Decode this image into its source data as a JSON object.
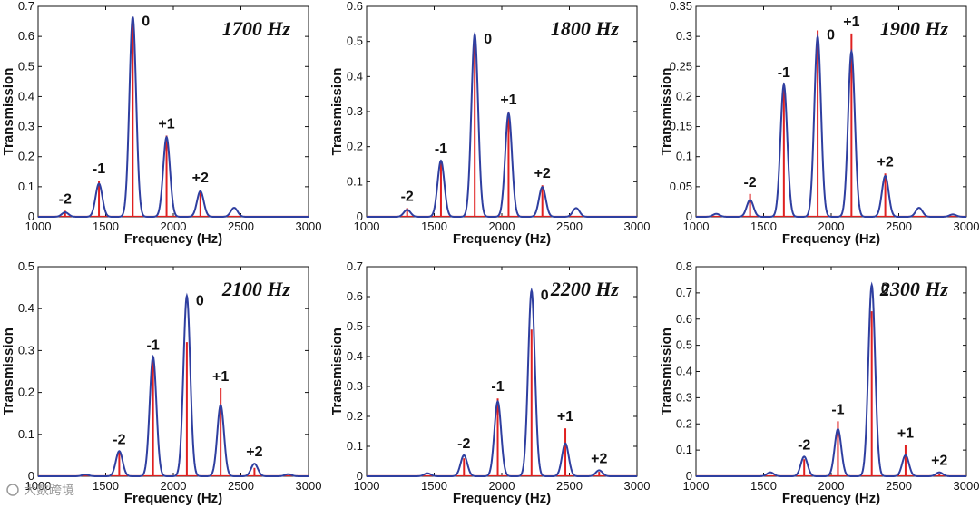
{
  "figure": {
    "watermark": "大数跨境",
    "colors": {
      "model_curve": "#2f3fa0",
      "peak_stem": "#e02020",
      "axis": "#111111"
    }
  },
  "chart_data": [
    {
      "type": "line",
      "title": "1700 Hz",
      "xlabel": "Frequency (Hz)",
      "ylabel": "Transmission",
      "xlim": [
        1000,
        3000
      ],
      "ylim": [
        0,
        0.7
      ],
      "xticks": [
        "1000",
        "1500",
        "2000",
        "2500",
        "3000"
      ],
      "yticks": [
        "0",
        "0.1",
        "0.2",
        "0.3",
        "0.4",
        "0.5",
        "0.6",
        "0.7"
      ],
      "peaks": [
        {
          "label": "-2",
          "x": 1200,
          "curve": 0.015,
          "stem": 0.02
        },
        {
          "label": "-1",
          "x": 1450,
          "curve": 0.11,
          "stem": 0.12
        },
        {
          "label": "0",
          "x": 1700,
          "curve": 0.665,
          "stem": 0.665
        },
        {
          "label": "+1",
          "x": 1950,
          "curve": 0.265,
          "stem": 0.27
        },
        {
          "label": "+2",
          "x": 2200,
          "curve": 0.085,
          "stem": 0.09
        },
        {
          "label": "",
          "x": 2450,
          "curve": 0.03,
          "stem": 0
        }
      ]
    },
    {
      "type": "line",
      "title": "1800 Hz",
      "xlabel": "Frequency (Hz)",
      "ylabel": "Transmission",
      "xlim": [
        1000,
        3000
      ],
      "ylim": [
        0,
        0.6
      ],
      "xticks": [
        "1000",
        "1500",
        "2000",
        "2500",
        "3000"
      ],
      "yticks": [
        "0",
        "0.1",
        "0.2",
        "0.3",
        "0.4",
        "0.5",
        "0.6"
      ],
      "peaks": [
        {
          "label": "-2",
          "x": 1300,
          "curve": 0.02,
          "stem": 0.025
        },
        {
          "label": "-1",
          "x": 1550,
          "curve": 0.16,
          "stem": 0.16
        },
        {
          "label": "0",
          "x": 1800,
          "curve": 0.52,
          "stem": 0.5
        },
        {
          "label": "+1",
          "x": 2050,
          "curve": 0.295,
          "stem": 0.3
        },
        {
          "label": "+2",
          "x": 2300,
          "curve": 0.085,
          "stem": 0.09
        },
        {
          "label": "",
          "x": 2550,
          "curve": 0.025,
          "stem": 0
        }
      ]
    },
    {
      "type": "line",
      "title": "1900 Hz",
      "xlabel": "Frequency (Hz)",
      "ylabel": "Transmission",
      "xlim": [
        1000,
        3000
      ],
      "ylim": [
        0,
        0.35
      ],
      "xticks": [
        "1000",
        "1500",
        "2000",
        "2500",
        "3000"
      ],
      "yticks": [
        "0",
        "0.05",
        "0.1",
        "0.15",
        "0.2",
        "0.25",
        "0.3",
        "0.35"
      ],
      "peaks": [
        {
          "label": "",
          "x": 1150,
          "curve": 0.005,
          "stem": 0
        },
        {
          "label": "-2",
          "x": 1400,
          "curve": 0.028,
          "stem": 0.038
        },
        {
          "label": "-1",
          "x": 1650,
          "curve": 0.22,
          "stem": 0.215
        },
        {
          "label": "0",
          "x": 1900,
          "curve": 0.3,
          "stem": 0.31
        },
        {
          "label": "+1",
          "x": 2150,
          "curve": 0.275,
          "stem": 0.305
        },
        {
          "label": "+2",
          "x": 2400,
          "curve": 0.068,
          "stem": 0.072
        },
        {
          "label": "",
          "x": 2650,
          "curve": 0.015,
          "stem": 0
        },
        {
          "label": "",
          "x": 2900,
          "curve": 0.004,
          "stem": 0
        }
      ]
    },
    {
      "type": "line",
      "title": "2100 Hz",
      "xlabel": "Frequency (Hz)",
      "ylabel": "Transmission",
      "xlim": [
        1000,
        3000
      ],
      "ylim": [
        0,
        0.5
      ],
      "xticks": [
        "1000",
        "1500",
        "2000",
        "2500",
        "3000"
      ],
      "yticks": [
        "0",
        "0.1",
        "0.2",
        "0.3",
        "0.4",
        "0.5"
      ],
      "peaks": [
        {
          "label": "",
          "x": 1350,
          "curve": 0.004,
          "stem": 0
        },
        {
          "label": "-2",
          "x": 1600,
          "curve": 0.06,
          "stem": 0.06
        },
        {
          "label": "-1",
          "x": 1850,
          "curve": 0.285,
          "stem": 0.28
        },
        {
          "label": "0",
          "x": 2100,
          "curve": 0.43,
          "stem": 0.32
        },
        {
          "label": "+1",
          "x": 2350,
          "curve": 0.17,
          "stem": 0.21
        },
        {
          "label": "+2",
          "x": 2600,
          "curve": 0.03,
          "stem": 0.02
        },
        {
          "label": "",
          "x": 2850,
          "curve": 0.005,
          "stem": 0
        }
      ]
    },
    {
      "type": "line",
      "title": "2200 Hz",
      "xlabel": "Frequency (Hz)",
      "ylabel": "Transmission",
      "xlim": [
        1000,
        3000
      ],
      "ylim": [
        0,
        0.7
      ],
      "xticks": [
        "1000",
        "1500",
        "2000",
        "2500",
        "3000"
      ],
      "yticks": [
        "0",
        "0.1",
        "0.2",
        "0.3",
        "0.4",
        "0.5",
        "0.6",
        "0.7"
      ],
      "peaks": [
        {
          "label": "",
          "x": 1450,
          "curve": 0.01,
          "stem": 0
        },
        {
          "label": "-2",
          "x": 1720,
          "curve": 0.07,
          "stem": 0.06
        },
        {
          "label": "-1",
          "x": 1970,
          "curve": 0.25,
          "stem": 0.26
        },
        {
          "label": "0",
          "x": 2220,
          "curve": 0.62,
          "stem": 0.49
        },
        {
          "label": "+1",
          "x": 2470,
          "curve": 0.11,
          "stem": 0.16
        },
        {
          "label": "+2",
          "x": 2720,
          "curve": 0.02,
          "stem": 0.015
        }
      ]
    },
    {
      "type": "line",
      "title": "2300 Hz",
      "xlabel": "Frequency (Hz)",
      "ylabel": "Transmission",
      "xlim": [
        1000,
        3000
      ],
      "ylim": [
        0,
        0.8
      ],
      "xticks": [
        "1000",
        "1500",
        "2000",
        "2500",
        "3000"
      ],
      "yticks": [
        "0",
        "0.1",
        "0.2",
        "0.3",
        "0.4",
        "0.5",
        "0.6",
        "0.7",
        "0.8"
      ],
      "peaks": [
        {
          "label": "",
          "x": 1550,
          "curve": 0.015,
          "stem": 0
        },
        {
          "label": "-2",
          "x": 1800,
          "curve": 0.075,
          "stem": 0.065
        },
        {
          "label": "-1",
          "x": 2050,
          "curve": 0.18,
          "stem": 0.21
        },
        {
          "label": "0",
          "x": 2300,
          "curve": 0.73,
          "stem": 0.63
        },
        {
          "label": "+1",
          "x": 2550,
          "curve": 0.08,
          "stem": 0.12
        },
        {
          "label": "+2",
          "x": 2800,
          "curve": 0.015,
          "stem": 0.01
        }
      ]
    }
  ]
}
